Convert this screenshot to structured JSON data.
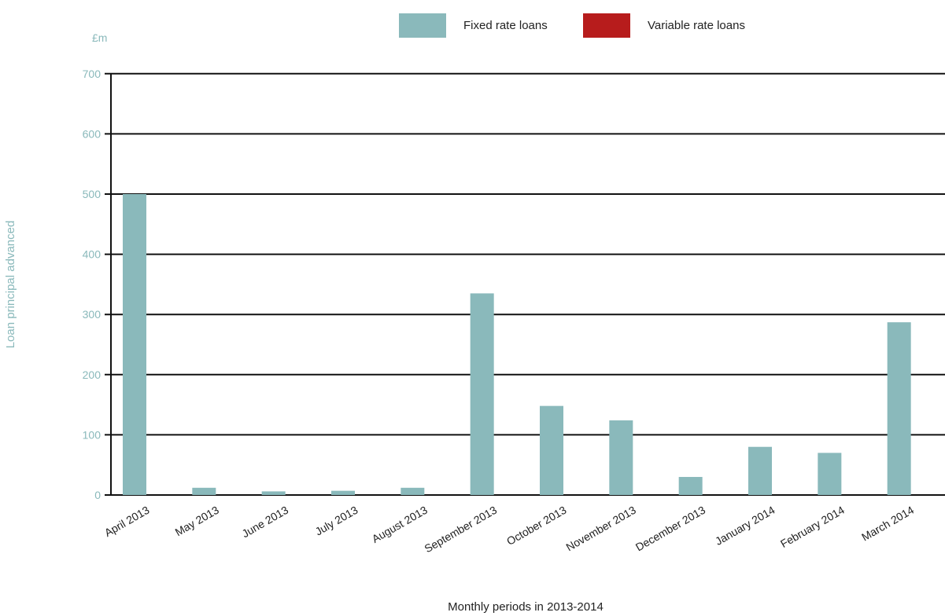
{
  "chart_data": {
    "type": "bar",
    "title": "",
    "unit_label": "£m",
    "ylabel": "Loan principal advanced",
    "xlabel": "Monthly periods in 2013-2014",
    "ylim": [
      0,
      700
    ],
    "yticks": [
      0,
      100,
      200,
      300,
      400,
      500,
      600,
      700
    ],
    "grid": true,
    "legend_position": "top-center",
    "categories": [
      "April 2013",
      "May 2013",
      "June 2013",
      "July 2013",
      "August 2013",
      "September 2013",
      "October 2013",
      "November 2013",
      "December 2013",
      "January 2014",
      "February 2014",
      "March 2014"
    ],
    "series": [
      {
        "name": "Fixed rate loans",
        "color": "#8ab9bb",
        "values": [
          500,
          12,
          6,
          7,
          12,
          335,
          148,
          124,
          30,
          80,
          70,
          287
        ]
      },
      {
        "name": "Variable rate loans",
        "color": "#b71c1c",
        "values": [
          0,
          0,
          0,
          0,
          0,
          0,
          0,
          0,
          0,
          0,
          0,
          0
        ]
      }
    ],
    "colors": {
      "axis_text": "#8ab9bb",
      "gridline": "#111111",
      "tick_text": "#222222"
    }
  }
}
